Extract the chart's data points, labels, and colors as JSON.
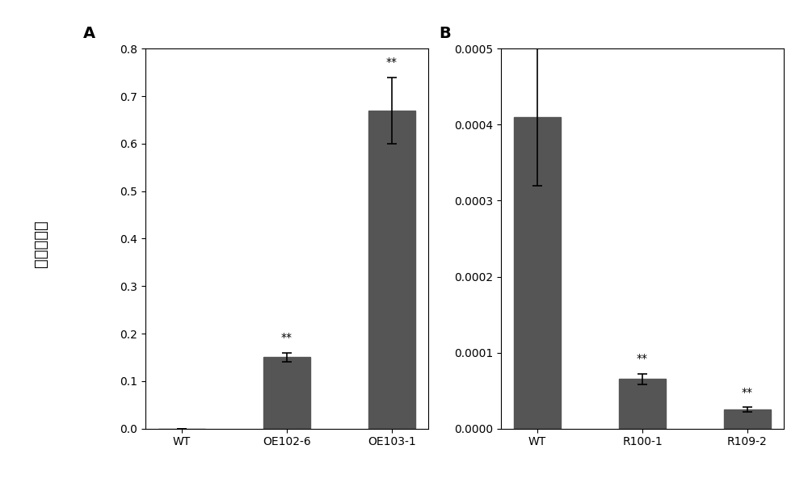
{
  "panel_A": {
    "label": "A",
    "categories": [
      "WT",
      "OE102-6",
      "OE103-1"
    ],
    "values": [
      0.0,
      0.15,
      0.67
    ],
    "errors": [
      0.0,
      0.01,
      0.07
    ],
    "significance": [
      "",
      "**",
      "**"
    ],
    "ylim": [
      0.0,
      0.8
    ],
    "yticks": [
      0.0,
      0.1,
      0.2,
      0.3,
      0.4,
      0.5,
      0.6,
      0.7,
      0.8
    ]
  },
  "panel_B": {
    "label": "B",
    "categories": [
      "WT",
      "R100-1",
      "R109-2"
    ],
    "values": [
      0.00041,
      6.5e-05,
      2.5e-05
    ],
    "errors": [
      9e-05,
      7e-06,
      3e-06
    ],
    "significance": [
      "",
      "**",
      "**"
    ],
    "ylim": [
      0.0,
      0.0005
    ],
    "yticks": [
      0.0,
      0.0001,
      0.0002,
      0.0003,
      0.0004,
      0.0005
    ]
  },
  "ylabel": "相对表达量",
  "bar_color": "#555555",
  "bar_width": 0.45,
  "bg_color": "#ffffff",
  "tick_fontsize": 10,
  "label_fontsize": 14,
  "sig_fontsize": 10,
  "panel_label_fontsize": 14
}
